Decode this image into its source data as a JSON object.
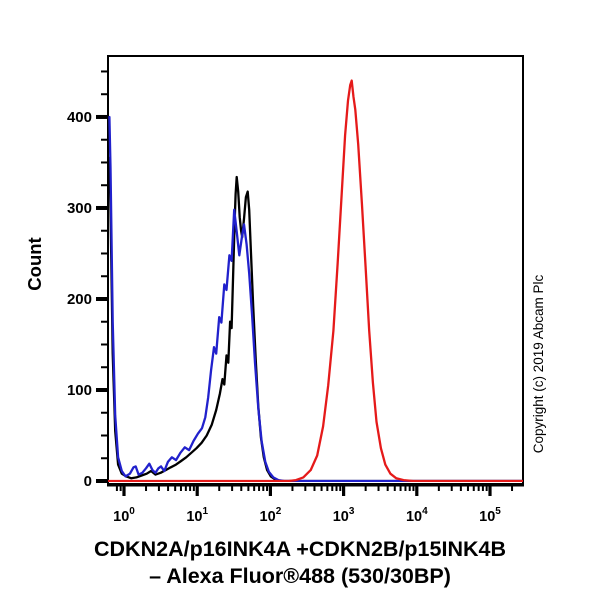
{
  "figure": {
    "background_color": "#ffffff",
    "frame_color": "#000000",
    "ylabel": "Count",
    "copyright": "Copyright (c) 2019 Abcam Plc",
    "title_line1": "CDKN2A/p16INK4A +CDKN2B/p15INK4B",
    "title_line2": "– Alexa Fluor®488 (530/30BP)"
  },
  "chart_data": {
    "type": "line",
    "subtype": "flow-cytometry-overlay-histogram",
    "title": "CDKN2A/p16INK4A +CDKN2B/p15INK4B – Alexa Fluor®488 (530/30BP)",
    "xlabel": "",
    "ylabel": "Count",
    "grid": false,
    "legend_position": "none",
    "x_scale": "log10",
    "xlim_log10": [
      -0.2186,
      5.4508
    ],
    "x_major_tick_exponents": [
      0,
      1,
      2,
      3,
      4,
      5
    ],
    "x_major_tick_base": "10",
    "x_minor_mantissas": [
      2,
      3,
      4,
      5,
      6,
      7,
      8,
      9
    ],
    "x_minor_min_log10": -0.11,
    "ylim": [
      0,
      467
    ],
    "y_major_ticks": [
      0,
      100,
      200,
      300,
      400
    ],
    "y_minor_step": 25,
    "series": [
      {
        "id": "black-curve",
        "name": "black histogram curve",
        "color": "#000000",
        "points_log10x_count": [
          [
            -0.2,
            355
          ],
          [
            -0.185,
            300
          ],
          [
            -0.155,
            140
          ],
          [
            -0.12,
            55
          ],
          [
            -0.08,
            18
          ],
          [
            -0.03,
            8
          ],
          [
            0.03,
            5
          ],
          [
            0.1,
            3
          ],
          [
            0.17,
            4
          ],
          [
            0.24,
            6
          ],
          [
            0.31,
            8
          ],
          [
            0.37,
            11
          ],
          [
            0.43,
            7
          ],
          [
            0.5,
            9
          ],
          [
            0.57,
            12
          ],
          [
            0.64,
            15
          ],
          [
            0.71,
            18
          ],
          [
            0.78,
            22
          ],
          [
            0.85,
            26
          ],
          [
            0.92,
            31
          ],
          [
            0.99,
            36
          ],
          [
            1.06,
            42
          ],
          [
            1.13,
            50
          ],
          [
            1.2,
            62
          ],
          [
            1.26,
            78
          ],
          [
            1.31,
            96
          ],
          [
            1.345,
            112
          ],
          [
            1.37,
            106
          ],
          [
            1.4,
            138
          ],
          [
            1.425,
            130
          ],
          [
            1.45,
            175
          ],
          [
            1.47,
            168
          ],
          [
            1.49,
            225
          ],
          [
            1.51,
            280
          ],
          [
            1.525,
            315
          ],
          [
            1.54,
            334
          ],
          [
            1.56,
            318
          ],
          [
            1.58,
            290
          ],
          [
            1.6,
            275
          ],
          [
            1.615,
            268
          ],
          [
            1.64,
            288
          ],
          [
            1.665,
            312
          ],
          [
            1.69,
            318
          ],
          [
            1.71,
            298
          ],
          [
            1.735,
            250
          ],
          [
            1.765,
            192
          ],
          [
            1.8,
            132
          ],
          [
            1.835,
            82
          ],
          [
            1.87,
            48
          ],
          [
            1.91,
            26
          ],
          [
            1.955,
            12
          ],
          [
            2.005,
            5
          ],
          [
            2.06,
            2
          ],
          [
            2.13,
            0
          ],
          [
            5.45,
            0
          ]
        ]
      },
      {
        "id": "blue-curve",
        "name": "blue histogram curve",
        "color": "#2121cc",
        "points_log10x_count": [
          [
            -0.2,
            400
          ],
          [
            -0.185,
            345
          ],
          [
            -0.155,
            175
          ],
          [
            -0.12,
            72
          ],
          [
            -0.08,
            26
          ],
          [
            -0.03,
            11
          ],
          [
            0.02,
            5
          ],
          [
            0.08,
            8
          ],
          [
            0.13,
            15
          ],
          [
            0.16,
            16
          ],
          [
            0.2,
            7
          ],
          [
            0.25,
            9
          ],
          [
            0.3,
            14
          ],
          [
            0.345,
            19
          ],
          [
            0.39,
            12
          ],
          [
            0.43,
            9
          ],
          [
            0.47,
            14
          ],
          [
            0.505,
            16
          ],
          [
            0.55,
            11
          ],
          [
            0.6,
            21
          ],
          [
            0.655,
            26
          ],
          [
            0.71,
            23
          ],
          [
            0.77,
            31
          ],
          [
            0.83,
            37
          ],
          [
            0.89,
            34
          ],
          [
            0.95,
            44
          ],
          [
            1.01,
            52
          ],
          [
            1.065,
            58
          ],
          [
            1.11,
            70
          ],
          [
            1.15,
            92
          ],
          [
            1.19,
            122
          ],
          [
            1.23,
            147
          ],
          [
            1.26,
            140
          ],
          [
            1.3,
            180
          ],
          [
            1.33,
            174
          ],
          [
            1.37,
            216
          ],
          [
            1.4,
            210
          ],
          [
            1.44,
            248
          ],
          [
            1.47,
            242
          ],
          [
            1.505,
            298
          ],
          [
            1.54,
            274
          ],
          [
            1.575,
            248
          ],
          [
            1.61,
            268
          ],
          [
            1.64,
            282
          ],
          [
            1.675,
            260
          ],
          [
            1.71,
            228
          ],
          [
            1.75,
            182
          ],
          [
            1.79,
            130
          ],
          [
            1.835,
            80
          ],
          [
            1.88,
            44
          ],
          [
            1.93,
            21
          ],
          [
            1.98,
            10
          ],
          [
            2.04,
            4
          ],
          [
            2.11,
            1
          ],
          [
            2.19,
            0
          ],
          [
            5.45,
            0
          ]
        ]
      },
      {
        "id": "red-curve",
        "name": "red histogram curve",
        "color": "#e51a1a",
        "points_log10x_count": [
          [
            -0.218,
            0
          ],
          [
            2.25,
            0
          ],
          [
            2.35,
            1
          ],
          [
            2.45,
            4
          ],
          [
            2.55,
            12
          ],
          [
            2.64,
            28
          ],
          [
            2.72,
            60
          ],
          [
            2.79,
            105
          ],
          [
            2.86,
            165
          ],
          [
            2.92,
            240
          ],
          [
            2.97,
            310
          ],
          [
            3.02,
            380
          ],
          [
            3.06,
            418
          ],
          [
            3.09,
            435
          ],
          [
            3.11,
            440
          ],
          [
            3.135,
            422
          ],
          [
            3.16,
            408
          ],
          [
            3.2,
            370
          ],
          [
            3.25,
            305
          ],
          [
            3.3,
            235
          ],
          [
            3.35,
            165
          ],
          [
            3.4,
            108
          ],
          [
            3.45,
            65
          ],
          [
            3.51,
            36
          ],
          [
            3.57,
            18
          ],
          [
            3.64,
            8
          ],
          [
            3.72,
            3
          ],
          [
            3.82,
            1
          ],
          [
            3.95,
            0
          ],
          [
            5.45,
            0
          ]
        ]
      }
    ]
  }
}
